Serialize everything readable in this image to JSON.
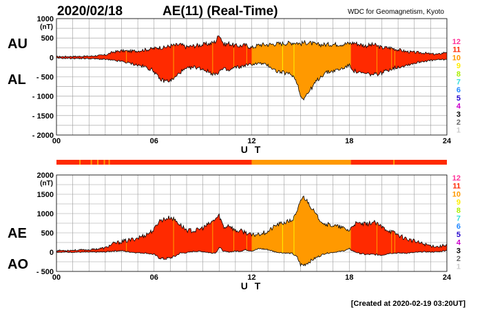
{
  "header": {
    "date": "2020/02/18",
    "title": "AE(11) (Real-Time)",
    "institution": "WDC for Geomagnetism, Kyoto"
  },
  "footer": {
    "created": "[Created at 2020-02-19 03:20UT]"
  },
  "legend": {
    "entries": [
      {
        "label": "12",
        "color": "#ff3399"
      },
      {
        "label": "11",
        "color": "#ff2a00"
      },
      {
        "label": "10",
        "color": "#ff9900"
      },
      {
        "label": "9",
        "color": "#ffee00"
      },
      {
        "label": "8",
        "color": "#aaee00"
      },
      {
        "label": "7",
        "color": "#33dddd"
      },
      {
        "label": "6",
        "color": "#2288ff"
      },
      {
        "label": "5",
        "color": "#2200cc"
      },
      {
        "label": "4",
        "color": "#cc00cc"
      },
      {
        "label": "3",
        "color": "#000000"
      },
      {
        "label": "2",
        "color": "#666666"
      },
      {
        "label": "1",
        "color": "#cccccc"
      }
    ]
  },
  "colors": {
    "station11": "#ff2a00",
    "station10": "#ff9900",
    "station9": "#ffee00",
    "grid": "#999999"
  },
  "chart_data": [
    {
      "type": "area",
      "name": "AU / AL",
      "title": "AE(11) (Real-Time)",
      "xlabel": "U T",
      "series_labels": [
        "AU",
        "AL"
      ],
      "ylabel": "(nT)",
      "xlim": [
        0,
        24
      ],
      "ylim": [
        -2000,
        1000
      ],
      "xticks": [
        "00",
        "06",
        "12",
        "18",
        "24"
      ],
      "yticks": [
        "1000",
        "500",
        "0",
        "- 500",
        "- 1000",
        "- 1500",
        "- 2000"
      ],
      "x": [
        0,
        1,
        2,
        3,
        3.5,
        4,
        4.5,
        5,
        5.5,
        6,
        6.3,
        6.6,
        7,
        7.3,
        7.6,
        8,
        8.5,
        9,
        9.5,
        9.8,
        10,
        10.3,
        10.6,
        11,
        11.3,
        11.6,
        12,
        12.5,
        13,
        13.5,
        14,
        14.5,
        14.8,
        15,
        15.2,
        15.5,
        16,
        16.5,
        17,
        17.5,
        18,
        18.3,
        18.6,
        19,
        19.5,
        20,
        20.5,
        21,
        21.5,
        22,
        22.5,
        23,
        23.5,
        24
      ],
      "au": [
        20,
        25,
        30,
        60,
        140,
        170,
        160,
        170,
        200,
        230,
        260,
        250,
        300,
        310,
        330,
        270,
        300,
        330,
        360,
        420,
        600,
        330,
        360,
        300,
        300,
        320,
        250,
        330,
        330,
        350,
        360,
        380,
        380,
        350,
        380,
        380,
        330,
        330,
        340,
        340,
        360,
        380,
        340,
        300,
        330,
        250,
        250,
        200,
        150,
        130,
        120,
        90,
        80,
        150
      ],
      "al": [
        -20,
        -25,
        -30,
        -50,
        -80,
        -100,
        -150,
        -200,
        -250,
        -350,
        -550,
        -600,
        -600,
        -520,
        -380,
        -300,
        -250,
        -300,
        -400,
        -450,
        -350,
        -300,
        -350,
        -250,
        -250,
        -200,
        -180,
        -150,
        -200,
        -350,
        -400,
        -450,
        -650,
        -1000,
        -1050,
        -900,
        -600,
        -400,
        -350,
        -300,
        -200,
        -350,
        -400,
        -420,
        -450,
        -400,
        -300,
        -250,
        -200,
        -150,
        -100,
        -80,
        -60,
        -50
      ],
      "station_segments": [
        {
          "from": 0,
          "to": 12,
          "stations": 11
        },
        {
          "from": 12,
          "to": 18.1,
          "stations": 10
        },
        {
          "from": 18.1,
          "to": 24,
          "stations": 11
        }
      ]
    },
    {
      "type": "area",
      "name": "AE / AO",
      "xlabel": "U T",
      "series_labels": [
        "AE",
        "AO"
      ],
      "ylabel": "(nT)",
      "xlim": [
        0,
        24
      ],
      "ylim": [
        -500,
        2000
      ],
      "xticks": [
        "00",
        "06",
        "12",
        "18",
        "24"
      ],
      "yticks": [
        "2000",
        "1500",
        "1000",
        "500",
        "0",
        "- 500"
      ],
      "x": [
        0,
        1,
        2,
        3,
        3.5,
        4,
        4.5,
        5,
        5.5,
        6,
        6.3,
        6.6,
        7,
        7.3,
        7.6,
        8,
        8.5,
        9,
        9.5,
        9.8,
        10,
        10.3,
        10.6,
        11,
        11.3,
        11.6,
        12,
        12.5,
        13,
        13.5,
        14,
        14.5,
        14.8,
        15,
        15.2,
        15.5,
        16,
        16.5,
        17,
        17.5,
        18,
        18.3,
        18.6,
        19,
        19.5,
        20,
        20.5,
        21,
        21.5,
        22,
        22.5,
        23,
        23.5,
        24
      ],
      "ae": [
        40,
        50,
        60,
        110,
        220,
        270,
        310,
        370,
        450,
        580,
        810,
        850,
        900,
        830,
        710,
        570,
        550,
        630,
        760,
        870,
        950,
        630,
        710,
        550,
        550,
        520,
        430,
        480,
        530,
        700,
        760,
        830,
        1030,
        1350,
        1430,
        1280,
        930,
        730,
        690,
        640,
        560,
        730,
        740,
        720,
        780,
        650,
        550,
        450,
        350,
        280,
        220,
        170,
        140,
        200
      ],
      "ao": [
        0,
        0,
        0,
        5,
        30,
        35,
        5,
        -15,
        -25,
        -60,
        -145,
        -175,
        -150,
        -105,
        -25,
        -15,
        25,
        15,
        -20,
        -15,
        125,
        15,
        5,
        25,
        25,
        60,
        35,
        90,
        65,
        0,
        -20,
        -35,
        -135,
        -325,
        -335,
        -260,
        -135,
        -35,
        -5,
        20,
        80,
        15,
        -30,
        -60,
        -60,
        -75,
        -25,
        -25,
        -25,
        -10,
        10,
        5,
        10,
        50
      ]
    }
  ],
  "station_bar": [
    {
      "from": 0,
      "to": 12,
      "stations": 11
    },
    {
      "from": 12,
      "to": 18.1,
      "stations": 10
    },
    {
      "from": 18.1,
      "to": 24,
      "stations": 11
    }
  ]
}
